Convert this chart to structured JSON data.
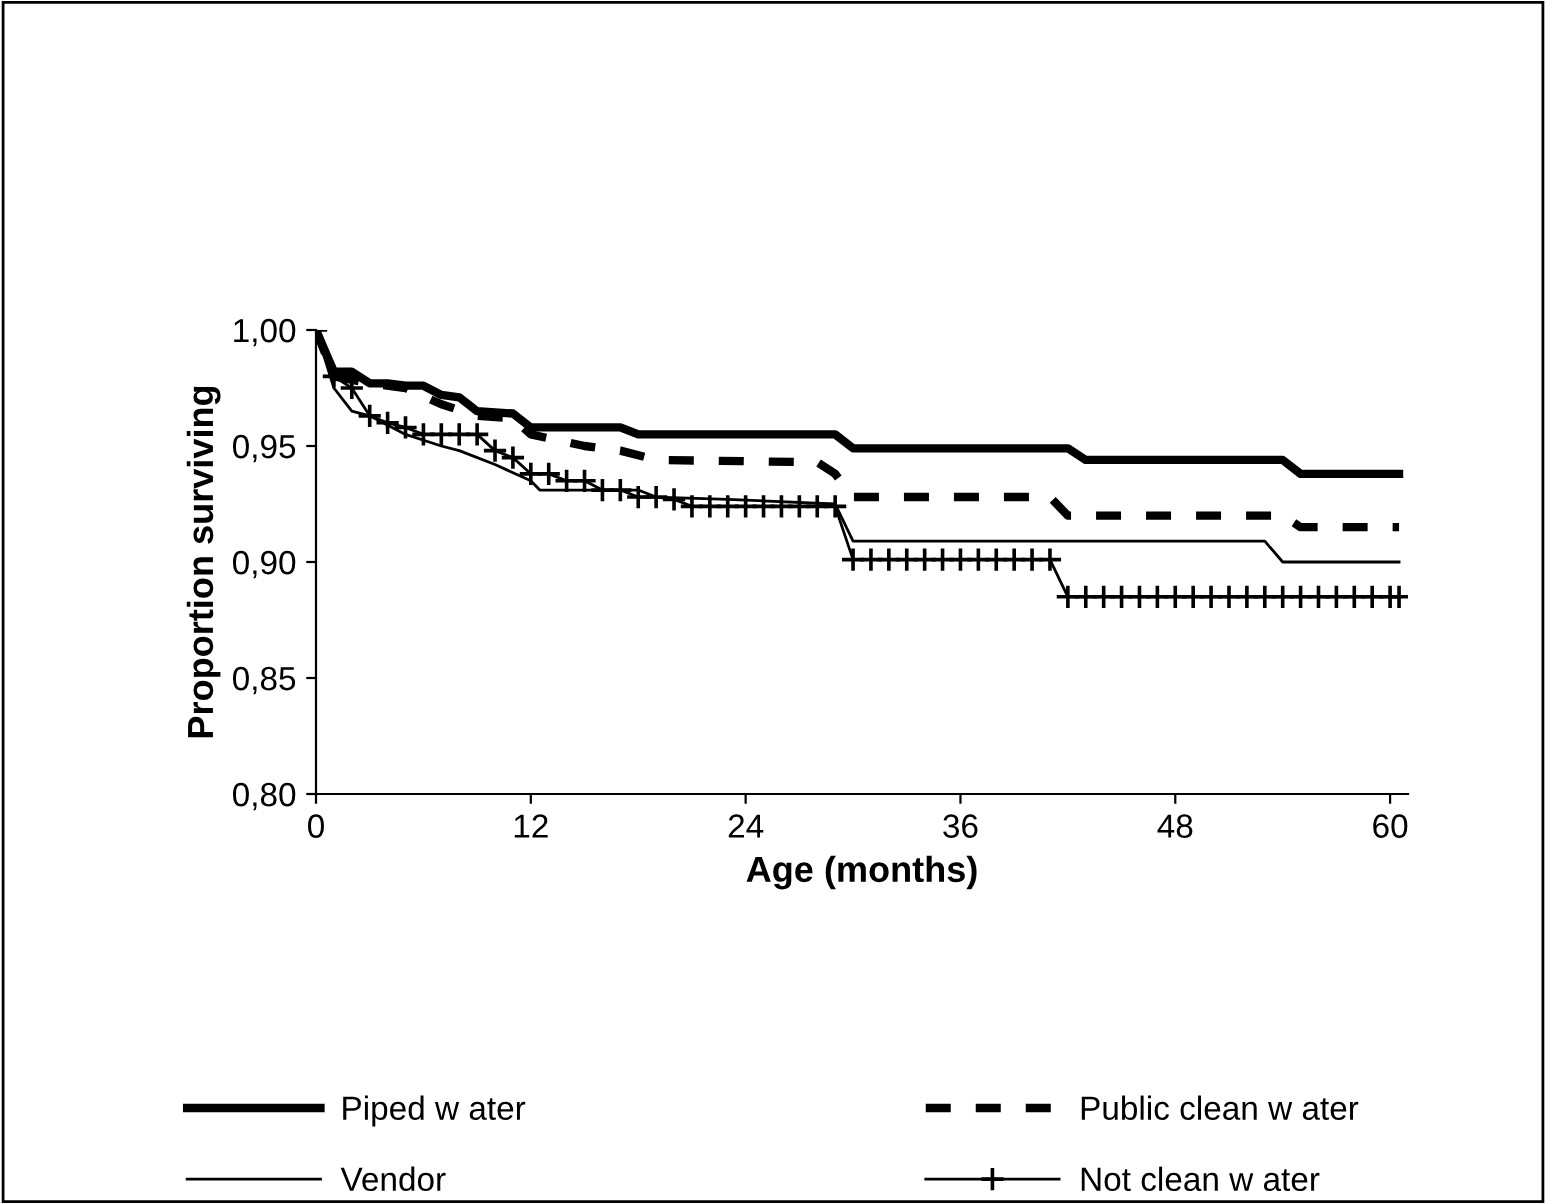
{
  "chart_data": {
    "type": "line",
    "xlabel": "Age (months)",
    "ylabel": "Proportion surviving",
    "xlim": [
      0,
      61
    ],
    "ylim": [
      0.8,
      1.0
    ],
    "xticks": [
      0,
      12,
      24,
      36,
      48,
      60
    ],
    "yticks": [
      {
        "value": 0.8,
        "label": "0,80"
      },
      {
        "value": 0.85,
        "label": "0,85"
      },
      {
        "value": 0.9,
        "label": "0,90"
      },
      {
        "value": 0.95,
        "label": "0,95"
      },
      {
        "value": 1.0,
        "label": "1,00"
      }
    ],
    "grid": false,
    "legend": "bottom",
    "series": [
      {
        "name": "Piped w ater",
        "color": "#000000",
        "line_style": "solid",
        "marker": "none",
        "x": [
          0,
          1,
          2,
          3,
          4,
          5,
          6,
          7,
          8,
          9,
          11,
          12,
          17,
          18,
          29,
          30,
          42,
          43,
          54,
          55,
          60.5
        ],
        "values": [
          1.0,
          0.982,
          0.982,
          0.977,
          0.977,
          0.976,
          0.976,
          0.972,
          0.971,
          0.965,
          0.964,
          0.958,
          0.958,
          0.955,
          0.955,
          0.949,
          0.949,
          0.944,
          0.944,
          0.938,
          0.938
        ]
      },
      {
        "name": "Public clean w ater",
        "color": "#000000",
        "line_style": "dashed",
        "marker": "none",
        "x": [
          0,
          1,
          3,
          5,
          7,
          9,
          11,
          12,
          15,
          17,
          19,
          28,
          29,
          30,
          41,
          42,
          54,
          55,
          60.5
        ],
        "values": [
          1.0,
          0.98,
          0.977,
          0.975,
          0.968,
          0.963,
          0.962,
          0.955,
          0.95,
          0.948,
          0.944,
          0.943,
          0.938,
          0.928,
          0.928,
          0.92,
          0.92,
          0.915,
          0.915
        ]
      },
      {
        "name": "Vendor",
        "color": "#000000",
        "line_style": "solid",
        "marker": "none",
        "x": [
          0,
          1,
          2,
          3,
          5,
          7,
          8,
          10,
          12,
          12.5,
          18,
          19,
          23,
          29,
          30,
          53,
          54,
          60.5
        ],
        "values": [
          1.0,
          0.975,
          0.965,
          0.963,
          0.955,
          0.95,
          0.948,
          0.942,
          0.935,
          0.931,
          0.931,
          0.928,
          0.927,
          0.925,
          0.909,
          0.909,
          0.9,
          0.9
        ]
      },
      {
        "name": "Not clean w ater",
        "color": "#000000",
        "line_style": "solid",
        "marker": "cross",
        "x": [
          0,
          1,
          2,
          3,
          4,
          5,
          6,
          7,
          8,
          9,
          10,
          11,
          12,
          13,
          14,
          15,
          16,
          17,
          18,
          19,
          20,
          21,
          22,
          23,
          24,
          25,
          26,
          27,
          28,
          29,
          30,
          31,
          32,
          33,
          34,
          35,
          36,
          37,
          38,
          39,
          40,
          41,
          42,
          43,
          44,
          45,
          46,
          47,
          48,
          49,
          50,
          51,
          52,
          53,
          54,
          55,
          56,
          57,
          58,
          59,
          60,
          60.5
        ],
        "values": [
          1.0,
          0.98,
          0.975,
          0.963,
          0.96,
          0.958,
          0.955,
          0.955,
          0.955,
          0.955,
          0.948,
          0.945,
          0.938,
          0.938,
          0.935,
          0.935,
          0.931,
          0.931,
          0.928,
          0.928,
          0.927,
          0.924,
          0.924,
          0.924,
          0.924,
          0.924,
          0.924,
          0.924,
          0.924,
          0.924,
          0.901,
          0.901,
          0.901,
          0.901,
          0.901,
          0.901,
          0.901,
          0.901,
          0.901,
          0.901,
          0.901,
          0.901,
          0.885,
          0.885,
          0.885,
          0.885,
          0.885,
          0.885,
          0.885,
          0.885,
          0.885,
          0.885,
          0.885,
          0.885,
          0.885,
          0.885,
          0.885,
          0.885,
          0.885,
          0.885,
          0.885,
          0.885
        ]
      }
    ]
  }
}
